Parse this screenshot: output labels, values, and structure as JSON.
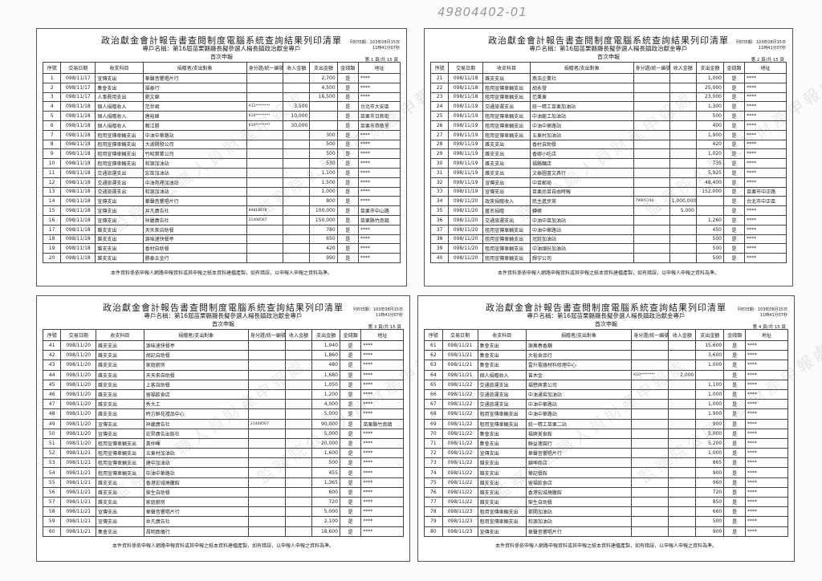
{
  "handwritten_ref": "49804402-01",
  "watermark": "監察院公職人員財產申報處",
  "common": {
    "title": "政治獻金會計報告書查閱制度電腦系統查詢結果列印清單",
    "subtitle": "專戶名稱：第16屆苗栗縣縣長擬參選人楊長鎮政治獻金專戶",
    "report_kind": "首次申報",
    "print_date": "列印日期：103年08月15日 11時41分07秒",
    "footer": "本件資料係依申報人網路申報資料或其申報之紙本資料建檔產製，如有錯誤，以申報人申報之資料為準。",
    "columns": [
      "序號",
      "交易日期",
      "收支科目",
      "捐贈者/支出對象",
      "身分證/統一編號",
      "收入金額",
      "支出金額",
      "金錢類",
      "地址"
    ]
  },
  "pages": [
    {
      "page_label": "第 1 頁/共 15 頁",
      "rows": [
        [
          "1",
          "098/11/17",
          "宣傳支出",
          "華聲音響唱片行",
          "",
          "",
          "2,700",
          "是",
          "****"
        ],
        [
          "2",
          "098/11/17",
          "集會支出",
          "福泰行",
          "",
          "",
          "4,500",
          "是",
          "****"
        ],
        [
          "3",
          "098/11/17",
          "人事費用支出",
          "劉文錦",
          "",
          "",
          "16,500",
          "是",
          "****"
        ],
        [
          "4",
          "098/11/18",
          "個人捐贈收入",
          "范世君",
          "A11********",
          "3,500",
          "",
          "是",
          "台北市大安區"
        ],
        [
          "5",
          "098/11/18",
          "個人捐贈收入",
          "唐裕峰",
          "K10********",
          "10,000",
          "",
          "是",
          "苗栗市日新街"
        ],
        [
          "6",
          "098/11/18",
          "個人捐贈收入",
          "賴江勝",
          "K10********",
          "30,000",
          "",
          "是",
          "苗栗市恭敬里"
        ],
        [
          "7",
          "098/11/18",
          "租用宣傳車輛支出",
          "中油中華路站",
          "",
          "",
          "300",
          "是",
          "****"
        ],
        [
          "8",
          "098/11/18",
          "租用宣傳車輛支出",
          "大湖開發公司",
          "",
          "",
          "500",
          "是",
          "****"
        ],
        [
          "9",
          "098/11/18",
          "租用宣傳車輛支出",
          "竹昭實業公司",
          "",
          "",
          "500",
          "是",
          "****"
        ],
        [
          "10",
          "098/11/18",
          "租用宣傳車輛支出",
          "和源加油站",
          "",
          "",
          "530",
          "是",
          "****"
        ],
        [
          "11",
          "098/11/18",
          "交通旅運支出",
          "宏苗加油站",
          "",
          "",
          "1,100",
          "是",
          "****"
        ],
        [
          "12",
          "098/11/18",
          "交通旅運支出",
          "中油苑裡加油站",
          "",
          "",
          "1,500",
          "是",
          "****"
        ],
        [
          "13",
          "098/11/18",
          "交通旅運支出",
          "和源加油站",
          "",
          "",
          "1,000",
          "是",
          "****"
        ],
        [
          "14",
          "098/11/18",
          "宣傳支出",
          "華聲音響唱片行",
          "",
          "",
          "800",
          "是",
          "****"
        ],
        [
          "15",
          "098/11/18",
          "宣傳支出",
          "井凡廣告社",
          "89818678",
          "",
          "100,000",
          "是",
          "苗栗市中山路"
        ],
        [
          "16",
          "098/11/18",
          "宣傳支出",
          "祥麗廣告社",
          "21408567",
          "",
          "150,000",
          "是",
          "苗栗縣竹南鎮"
        ],
        [
          "17",
          "098/11/18",
          "雜支支出",
          "天天來自助餐",
          "",
          "",
          "780",
          "是",
          "****"
        ],
        [
          "18",
          "098/11/18",
          "雜支支出",
          "源味速快餐亭",
          "",
          "",
          "650",
          "是",
          "****"
        ],
        [
          "19",
          "098/11/18",
          "雜支支出",
          "香村自助餐",
          "",
          "",
          "420",
          "是",
          "****"
        ],
        [
          "20",
          "098/11/18",
          "雜支支出",
          "勝泰五金行",
          "",
          "",
          "990",
          "是",
          "****"
        ]
      ]
    },
    {
      "page_label": "第 2 頁/共 15 頁",
      "rows": [
        [
          "21",
          "098/11/18",
          "雜支支出",
          "燕浩企業社",
          "",
          "",
          "1,000",
          "是",
          "****"
        ],
        [
          "22",
          "098/11/18",
          "租用宣傳車輛支出",
          "胡永發",
          "",
          "",
          "25,000",
          "是",
          "****"
        ],
        [
          "23",
          "098/11/18",
          "租用宣傳車輛支出",
          "范秉東",
          "",
          "",
          "23,000",
          "是",
          "****"
        ],
        [
          "24",
          "098/11/19",
          "交通旅運支出",
          "統一精工苗栗加油站",
          "",
          "",
          "1,300",
          "是",
          "****"
        ],
        [
          "25",
          "098/11/19",
          "租用宣傳車輛支出",
          "中油龍工加油站",
          "",
          "",
          "500",
          "是",
          "****"
        ],
        [
          "26",
          "098/11/19",
          "租用宣傳車輛支出",
          "中油中華路站",
          "",
          "",
          "400",
          "是",
          "****"
        ],
        [
          "27",
          "098/11/19",
          "租用宣傳車輛支出",
          "五東村加油站",
          "",
          "",
          "1,900",
          "是",
          "****"
        ],
        [
          "28",
          "098/11/19",
          "雜支支出",
          "香村自助餐",
          "",
          "",
          "420",
          "是",
          "****"
        ],
        [
          "29",
          "098/11/19",
          "雜支支出",
          "香卿小吃店",
          "",
          "",
          "1,020",
          "是",
          "****"
        ],
        [
          "30",
          "098/11/19",
          "雜支支出",
          "福縣麵店",
          "",
          "",
          "735",
          "是",
          "****"
        ],
        [
          "31",
          "098/11/19",
          "雜支支出",
          "文泰圖書文具行",
          "",
          "",
          "5,925",
          "是",
          "****"
        ],
        [
          "32",
          "098/11/19",
          "宣傳支出",
          "中苗郵局",
          "",
          "",
          "48,400",
          "是",
          "****"
        ],
        [
          "33",
          "098/11/19",
          "宣傳支出",
          "苗栗尚苗自由時報",
          "",
          "",
          "152,000",
          "是",
          "苗栗市中正路"
        ],
        [
          "34",
          "098/11/20",
          "政黨捐贈收入",
          "民主進步黨",
          "79905744",
          "1,000,000",
          "",
          "是",
          "台北市中正區"
        ],
        [
          "35",
          "098/11/20",
          "匿名捐贈",
          "轉帳",
          "",
          "5,000",
          "",
          "是",
          "****"
        ],
        [
          "36",
          "098/11/20",
          "交通旅運支出",
          "中油中苗加油站",
          "",
          "",
          "1,260",
          "是",
          "****"
        ],
        [
          "37",
          "098/11/20",
          "租用宣傳車輛支出",
          "中油中華路站",
          "",
          "",
          "450",
          "是",
          "****"
        ],
        [
          "38",
          "098/11/20",
          "租用宣傳車輛支出",
          "冠銓加油站",
          "",
          "",
          "500",
          "是",
          "****"
        ],
        [
          "39",
          "098/11/20",
          "租用宣傳車輛支出",
          "中油頭份加油站",
          "",
          "",
          "500",
          "是",
          "****"
        ],
        [
          "40",
          "098/11/20",
          "租用宣傳車輛支出",
          "輝宇公司",
          "",
          "",
          "500",
          "是",
          "****"
        ]
      ]
    },
    {
      "page_label": "第 3 頁/共 15 頁",
      "rows": [
        [
          "41",
          "098/11/20",
          "雜支支出",
          "源味速快餐亭",
          "",
          "",
          "1,040",
          "是",
          "****"
        ],
        [
          "42",
          "098/11/20",
          "雜支支出",
          "胡記自助餐",
          "",
          "",
          "1,860",
          "是",
          "****"
        ],
        [
          "43",
          "098/11/20",
          "雜支支出",
          "家庭廚房",
          "",
          "",
          "480",
          "是",
          "****"
        ],
        [
          "44",
          "098/11/20",
          "雜支支出",
          "天天來自助餐",
          "",
          "",
          "1,680",
          "是",
          "****"
        ],
        [
          "45",
          "098/11/20",
          "雜支支出",
          "上客自助餐",
          "",
          "",
          "1,050",
          "是",
          "****"
        ],
        [
          "46",
          "098/11/20",
          "雜支支出",
          "留福飲食店",
          "",
          "",
          "1,200",
          "是",
          "****"
        ],
        [
          "47",
          "098/11/20",
          "雜支支出",
          "秀大工",
          "",
          "",
          "4,000",
          "是",
          "****"
        ],
        [
          "48",
          "098/11/20",
          "雜支支出",
          "時方鮮花禮品中心",
          "",
          "",
          "5,000",
          "是",
          "****"
        ],
        [
          "49",
          "098/11/20",
          "宣傳支出",
          "祥麗廣告社",
          "21408567",
          "",
          "90,000",
          "是",
          "苗栗縣竹南鎮"
        ],
        [
          "50",
          "098/11/20",
          "宣傳支出",
          "宏昇廣告出版社",
          "",
          "",
          "5,000",
          "是",
          "****"
        ],
        [
          "51",
          "098/11/20",
          "租用宣傳車輛支出",
          "黃仲暉",
          "",
          "",
          "20,000",
          "是",
          "****"
        ],
        [
          "52",
          "098/11/21",
          "租用宣傳車輛支出",
          "五東村加油站",
          "",
          "",
          "1,600",
          "是",
          "****"
        ],
        [
          "53",
          "098/11/21",
          "租用宣傳車輛支出",
          "建中加油站",
          "",
          "",
          "500",
          "是",
          "****"
        ],
        [
          "54",
          "098/11/21",
          "租用宣傳車輛支出",
          "中油中華路站",
          "",
          "",
          "455",
          "是",
          "****"
        ],
        [
          "55",
          "098/11/21",
          "雜支支出",
          "香港宏城燒臘館",
          "",
          "",
          "1,365",
          "是",
          "****"
        ],
        [
          "56",
          "098/11/21",
          "雜支支出",
          "榮生自助餐",
          "",
          "",
          "600",
          "是",
          "****"
        ],
        [
          "57",
          "098/11/21",
          "雜支支出",
          "家庭廚房",
          "",
          "",
          "720",
          "是",
          "****"
        ],
        [
          "58",
          "098/11/21",
          "宣傳支出",
          "華聲音響唱片行",
          "",
          "",
          "5,000",
          "是",
          "****"
        ],
        [
          "59",
          "098/11/21",
          "宣傳支出",
          "井凡廣告社",
          "",
          "",
          "2,100",
          "是",
          "****"
        ],
        [
          "60",
          "098/11/21",
          "集會支出",
          "昌明葬儀行",
          "",
          "",
          "18,600",
          "是",
          "****"
        ]
      ]
    },
    {
      "page_label": "第 4 頁/共 15 頁",
      "rows": [
        [
          "61",
          "098/11/21",
          "集會支出",
          "謝萬春香舖",
          "",
          "",
          "15,600",
          "是",
          "****"
        ],
        [
          "62",
          "098/11/21",
          "集會支出",
          "大裕食品行",
          "",
          "",
          "3,600",
          "是",
          "****"
        ],
        [
          "63",
          "098/11/21",
          "集會支出",
          "雷升電器材料修理中心",
          "",
          "",
          "1,000",
          "是",
          "****"
        ],
        [
          "64",
          "098/11/21",
          "個人捐贈收入",
          "曾木金",
          "K10********",
          "2,000",
          "",
          "是",
          "****"
        ],
        [
          "65",
          "098/11/22",
          "交通旅運支出",
          "福懋興業公司",
          "",
          "",
          "1,100",
          "是",
          "****"
        ],
        [
          "66",
          "098/11/22",
          "交通旅運支出",
          "中油通霄加油站",
          "",
          "",
          "1,000",
          "是",
          "****"
        ],
        [
          "67",
          "098/11/22",
          "交通旅運支出",
          "中油中華路站",
          "",
          "",
          "1,000",
          "是",
          "****"
        ],
        [
          "68",
          "098/11/22",
          "租用宣傳車輛支出",
          "中油中華路站",
          "",
          "",
          "1,900",
          "是",
          "****"
        ],
        [
          "69",
          "098/11/22",
          "租用宣傳車輛支出",
          "統一精工苗栗二站",
          "",
          "",
          "900",
          "是",
          "****"
        ],
        [
          "70",
          "098/11/22",
          "集會支出",
          "福興美食館",
          "",
          "",
          "5,000",
          "是",
          "****"
        ],
        [
          "71",
          "098/11/22",
          "集會支出",
          "聯益蓮園行",
          "",
          "",
          "5,200",
          "是",
          "****"
        ],
        [
          "72",
          "098/11/22",
          "宣傳支出",
          "華聲音響唱片行",
          "",
          "",
          "1,000",
          "是",
          "****"
        ],
        [
          "73",
          "098/11/22",
          "雜支支出",
          "錦坤商店",
          "",
          "",
          "865",
          "是",
          "****"
        ],
        [
          "74",
          "098/11/22",
          "雜支支出",
          "華記餐館",
          "",
          "",
          "900",
          "是",
          "****"
        ],
        [
          "75",
          "098/11/22",
          "雜支支出",
          "留福飲食店",
          "",
          "",
          "960",
          "是",
          "****"
        ],
        [
          "76",
          "098/11/22",
          "雜支支出",
          "香港宏城燒臘館",
          "",
          "",
          "720",
          "是",
          "****"
        ],
        [
          "77",
          "098/11/22",
          "雜支支出",
          "榮生自助餐",
          "",
          "",
          "850",
          "是",
          "****"
        ],
        [
          "78",
          "098/11/23",
          "租用宣傳車輛支出",
          "鄧開加油站",
          "",
          "",
          "660",
          "是",
          "****"
        ],
        [
          "79",
          "098/11/23",
          "租用宣傳車輛支出",
          "和源加油站",
          "",
          "",
          "500",
          "是",
          "****"
        ],
        [
          "80",
          "098/11/23",
          "宣傳支出",
          "華聲音響唱片行",
          "",
          "",
          "900",
          "是",
          "****"
        ]
      ]
    }
  ]
}
